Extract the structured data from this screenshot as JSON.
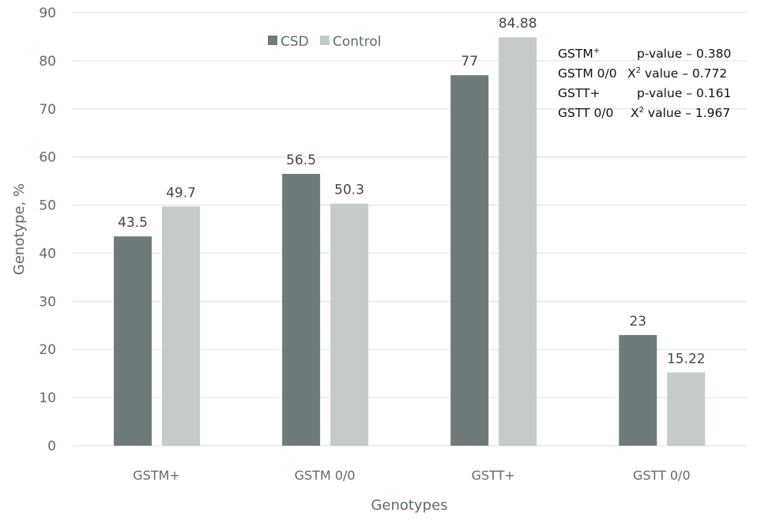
{
  "chart_data": {
    "type": "bar",
    "title": "",
    "xlabel": "Genotypes",
    "ylabel": "Genotype, %",
    "ylim": [
      0,
      90
    ],
    "yticks": [
      0,
      10,
      20,
      30,
      40,
      50,
      60,
      70,
      80,
      90
    ],
    "ytick_labels": [
      "0",
      "10",
      "20",
      "30",
      "40",
      "50",
      "60",
      "70",
      "80",
      "90"
    ],
    "grid": true,
    "legend_position": "top-center",
    "categories": [
      "GSTM+",
      "GSTM 0/0",
      "GSTT+",
      "GSTT 0/0"
    ],
    "series": [
      {
        "name": "CSD",
        "color": "#6f7a7a",
        "values": [
          43.5,
          56.5,
          77,
          23
        ],
        "labels": [
          "43.5",
          "56.5",
          "77",
          "23"
        ]
      },
      {
        "name": "Control",
        "color": "#c4cbca",
        "values": [
          49.7,
          50.3,
          84.88,
          15.22
        ],
        "labels": [
          "49.7",
          "50.3",
          "84.88",
          "15.22"
        ]
      }
    ],
    "annotations": [
      {
        "genotype": "GSTM",
        "sup": "+",
        "stat": "p-value – 0.380"
      },
      {
        "genotype": "GSTM 0/0",
        "prefix": "X",
        "sup": "2",
        "stat": " value – 0.772"
      },
      {
        "genotype": "GSTT+",
        "stat": "p-value – 0.161"
      },
      {
        "genotype": "GSTT 0/0",
        "prefix": "X",
        "sup": "2",
        "stat": " value – 1.967"
      }
    ]
  }
}
